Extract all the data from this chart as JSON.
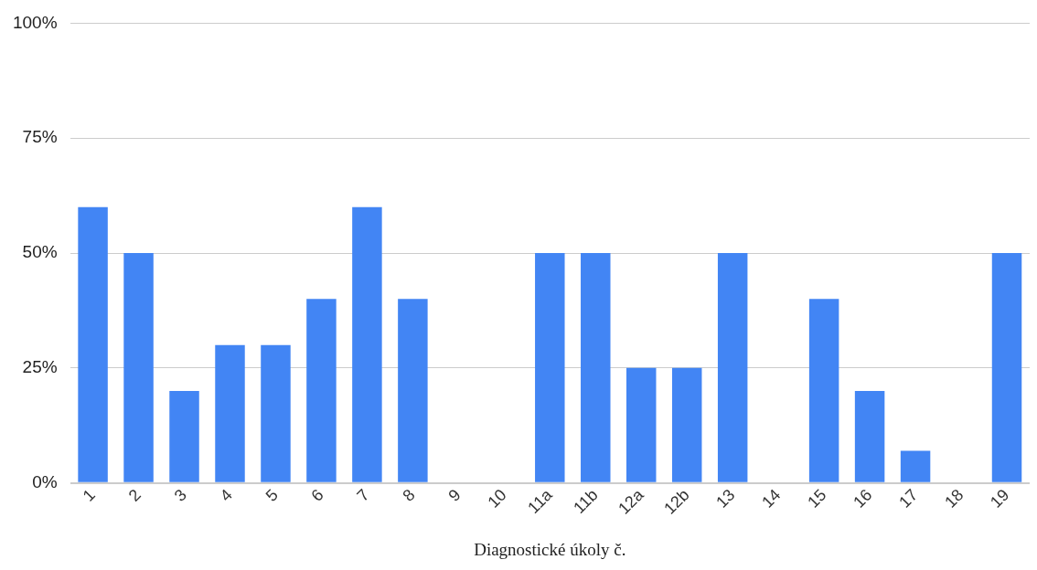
{
  "chart_data": {
    "type": "bar",
    "xlabel": "Diagnostické úkoly č.",
    "categories": [
      "1",
      "2",
      "3",
      "4",
      "5",
      "6",
      "7",
      "8",
      "9",
      "10",
      "11a",
      "11b",
      "12a",
      "12b",
      "13",
      "14",
      "15",
      "16",
      "17",
      "18",
      "19"
    ],
    "values": [
      60,
      50,
      20,
      30,
      30,
      40,
      60,
      40,
      0,
      0,
      50,
      50,
      25,
      25,
      50,
      0,
      40,
      20,
      7,
      0,
      50
    ],
    "color": "#4285f4",
    "ylim": [
      0,
      100
    ],
    "yticks": [
      {
        "value": 0,
        "label": "0%"
      },
      {
        "value": 25,
        "label": "25%"
      },
      {
        "value": 50,
        "label": "50%"
      },
      {
        "value": 75,
        "label": "75%"
      },
      {
        "value": 100,
        "label": "100%"
      }
    ],
    "grid": "y"
  }
}
